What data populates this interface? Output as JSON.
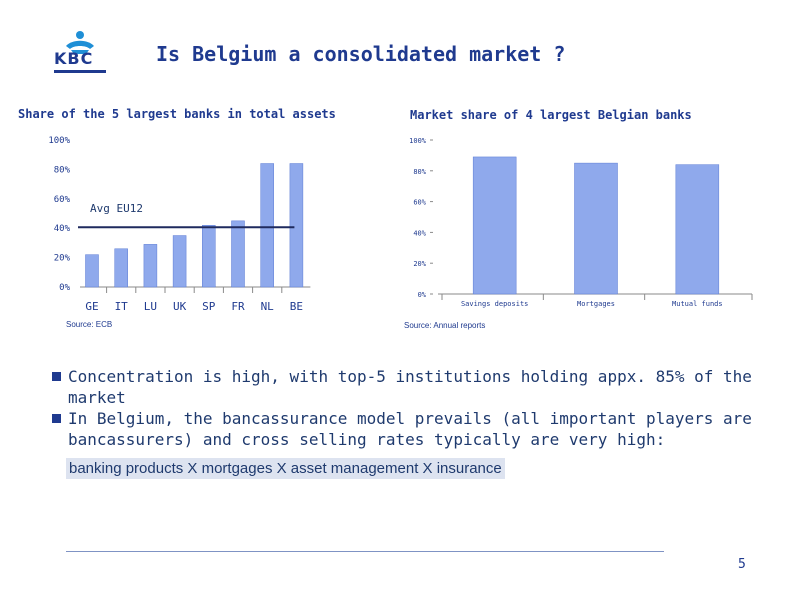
{
  "logo": {
    "text": "KBC",
    "icon": "kbc-logo-icon"
  },
  "title": "Is Belgium a consolidated market ?",
  "colors": {
    "accent": "#1f3a8f",
    "bar": "#8fa9ec",
    "bar_stroke": "#5b7bd4",
    "highlight_bg": "#dde3f0"
  },
  "chart_data": [
    {
      "type": "bar",
      "title": "Share of the 5 largest banks in total assets",
      "categories": [
        "GE",
        "IT",
        "LU",
        "UK",
        "SP",
        "FR",
        "NL",
        "BE"
      ],
      "values": [
        22,
        26,
        29,
        35,
        42,
        45,
        84,
        84
      ],
      "y_ticks": [
        "0%",
        "20%",
        "40%",
        "60%",
        "80%",
        "100%"
      ],
      "ylim": [
        0,
        100
      ],
      "reference_line": {
        "label": "Avg EU12",
        "value": 40
      },
      "source": "Source: ECB",
      "grid": false
    },
    {
      "type": "bar",
      "title": "Market share of 4 largest Belgian banks",
      "categories": [
        "Savings deposits",
        "Mortgages",
        "Mutual funds"
      ],
      "values": [
        89,
        85,
        84
      ],
      "y_ticks": [
        "0%",
        "20%",
        "40%",
        "60%",
        "80%",
        "100%"
      ],
      "ylim": [
        0,
        100
      ],
      "source": "Source: Annual reports",
      "grid": false
    }
  ],
  "bullets": [
    "Concentration is high, with top-5 institutions holding appx. 85% of the market",
    "In Belgium, the bancassurance model prevails (all important players are bancassurers) and cross selling rates typically are very high:"
  ],
  "highlight": "banking products X mortgages X asset management X insurance",
  "page_number": "5"
}
